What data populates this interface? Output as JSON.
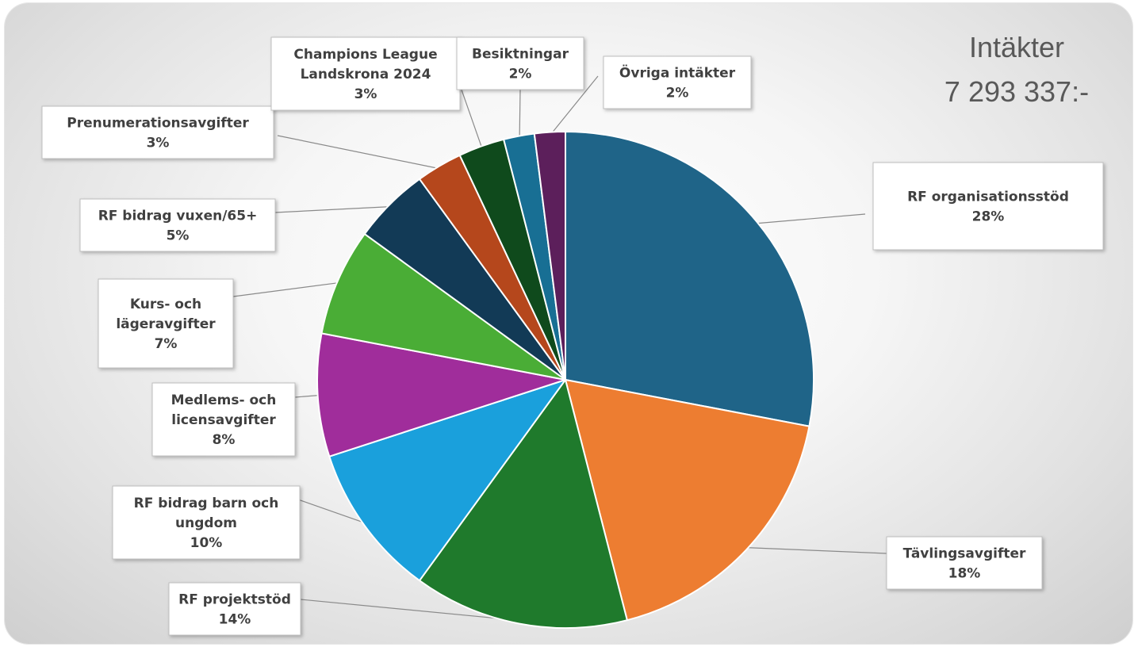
{
  "chart_data": {
    "type": "pie",
    "title": "Intäkter",
    "subtitle": "7 293 337:-",
    "slices": [
      {
        "name": "RF organisationsstöd",
        "lines": [
          "RF organisationsstöd"
        ],
        "percent_label": "28%",
        "value": 28,
        "color": "#1f6488"
      },
      {
        "name": "Tävlingsavgifter",
        "lines": [
          "Tävlingsavgifter"
        ],
        "percent_label": "18%",
        "value": 18,
        "color": "#ed7d31"
      },
      {
        "name": "RF projektstöd",
        "lines": [
          "RF projektstöd"
        ],
        "percent_label": "14%",
        "value": 14,
        "color": "#1f7a2c"
      },
      {
        "name": "RF bidrag barn och ungdom",
        "lines": [
          "RF bidrag barn och",
          "ungdom"
        ],
        "percent_label": "10%",
        "value": 10,
        "color": "#1aa0dc"
      },
      {
        "name": "Medlems- och licensavgifter",
        "lines": [
          "Medlems- och",
          "licensavgifter"
        ],
        "percent_label": "8%",
        "value": 8,
        "color": "#a02d9b"
      },
      {
        "name": "Kurs- och lägeravgifter",
        "lines": [
          "Kurs- och",
          "lägeravgifter"
        ],
        "percent_label": "7%",
        "value": 7,
        "color": "#4aad36"
      },
      {
        "name": "RF bidrag vuxen/65+",
        "lines": [
          "RF bidrag vuxen/65+"
        ],
        "percent_label": "5%",
        "value": 5,
        "color": "#123a56"
      },
      {
        "name": "Prenumerationsavgifter",
        "lines": [
          "Prenumerationsavgifter"
        ],
        "percent_label": "3%",
        "value": 3,
        "color": "#b5471c"
      },
      {
        "name": "Champions League Landskrona 2024",
        "lines": [
          "Champions League",
          "Landskrona 2024"
        ],
        "percent_label": "3%",
        "value": 3,
        "color": "#0f4a1c"
      },
      {
        "name": "Besiktningar",
        "lines": [
          "Besiktningar"
        ],
        "percent_label": "2%",
        "value": 2,
        "color": "#186f94"
      },
      {
        "name": "Övriga intäkter",
        "lines": [
          "Övriga intäkter"
        ],
        "percent_label": "2%",
        "value": 2,
        "color": "#5c1f5b"
      }
    ]
  }
}
